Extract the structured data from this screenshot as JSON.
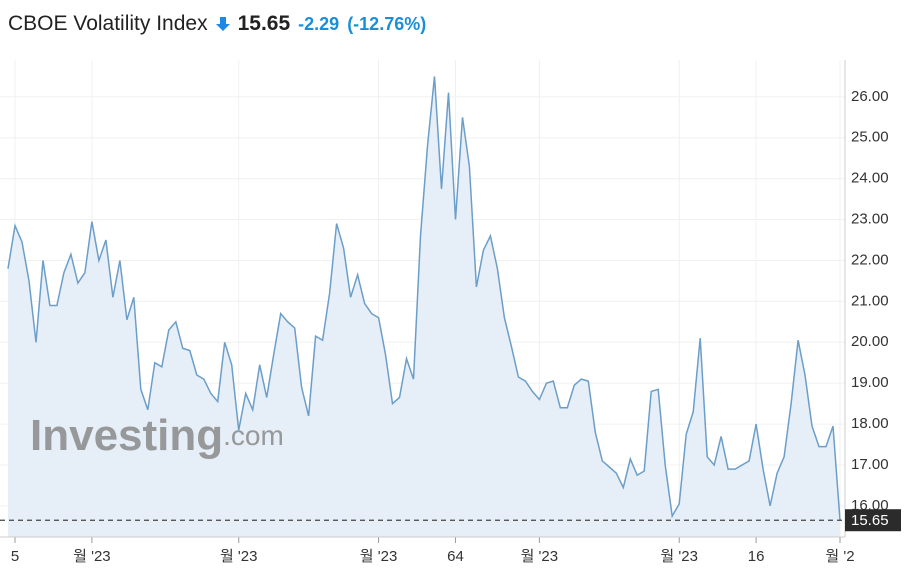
{
  "chart_data": {
    "type": "line",
    "title": "CBOE Volatility Index",
    "current": 15.65,
    "change": -2.29,
    "change_pct": "(-12.76%)",
    "watermark": [
      "Investing",
      ".com"
    ],
    "color": "#6b9ec9",
    "fill": "#e6eef7",
    "grid": true,
    "x": [
      0,
      1,
      2,
      3,
      4,
      5,
      6,
      7,
      8,
      9,
      10,
      11,
      12,
      13,
      14,
      15,
      16,
      17,
      18,
      19,
      20,
      21,
      22,
      23,
      24,
      25,
      26,
      27,
      28,
      29,
      30,
      31,
      32,
      33,
      34,
      35,
      36,
      37,
      38,
      39,
      40,
      41,
      42,
      43,
      44,
      45,
      46,
      47,
      48,
      49,
      50,
      51,
      52,
      53,
      54,
      55,
      56,
      57,
      58,
      59,
      60,
      61,
      62,
      63,
      64,
      65,
      66,
      67,
      68,
      69,
      70,
      71,
      72,
      73,
      74,
      75,
      76,
      77,
      78,
      79,
      80,
      81,
      82,
      83,
      84,
      85,
      86,
      87,
      88,
      89,
      90,
      91,
      92,
      93,
      94,
      95,
      96,
      97,
      98,
      99,
      100,
      101,
      102,
      103,
      104,
      105,
      106,
      107,
      108,
      109,
      110,
      111,
      112,
      113,
      114,
      115,
      116,
      117,
      118,
      119
    ],
    "values": [
      21.8,
      22.85,
      22.45,
      21.5,
      20.0,
      22.0,
      20.9,
      20.9,
      21.7,
      22.15,
      21.45,
      21.7,
      22.95,
      22.0,
      22.5,
      21.1,
      22.0,
      20.55,
      21.1,
      18.85,
      18.35,
      19.5,
      19.4,
      20.3,
      20.5,
      19.85,
      19.8,
      19.2,
      19.1,
      18.75,
      18.55,
      20.0,
      19.45,
      17.85,
      18.75,
      18.35,
      19.45,
      18.65,
      19.7,
      20.7,
      20.5,
      20.35,
      18.9,
      18.2,
      20.15,
      20.05,
      21.2,
      22.9,
      22.3,
      21.1,
      21.65,
      20.95,
      20.7,
      20.6,
      19.7,
      18.5,
      18.65,
      19.6,
      19.1,
      22.6,
      24.8,
      26.5,
      23.75,
      26.1,
      23.0,
      25.5,
      24.3,
      21.35,
      22.25,
      22.6,
      21.8,
      20.6,
      19.9,
      19.15,
      19.05,
      18.8,
      18.6,
      19.0,
      19.05,
      18.4,
      18.4,
      18.95,
      19.1,
      19.05,
      17.8,
      17.1,
      16.95,
      16.8,
      16.45,
      17.15,
      16.75,
      16.85,
      18.8,
      18.85,
      17.0,
      15.75,
      16.05,
      17.75,
      18.3,
      20.1,
      17.2,
      17.0,
      17.7,
      16.9,
      16.9,
      17.0,
      17.1,
      18.0,
      16.9,
      16.0,
      16.8,
      17.2,
      18.5,
      20.05,
      19.2,
      17.95,
      17.45,
      17.45,
      17.95,
      15.65
    ],
    "xlim": [
      0,
      119
    ],
    "xticks": [
      {
        "value": 1,
        "label": "5"
      },
      {
        "value": 12,
        "label": "월 '23"
      },
      {
        "value": 33,
        "label": "월 '23"
      },
      {
        "value": 53,
        "label": "월 '23"
      },
      64,
      {
        "value": 76,
        "label": "월 '23"
      },
      {
        "value": 96,
        "label": "월 '23"
      },
      {
        "value": 107,
        "label": "16"
      },
      {
        "value": 119,
        "label": "월 '2"
      }
    ],
    "ylim": [
      15.24,
      26.9
    ],
    "yticks": [
      {
        "value": 16,
        "label": "16.00"
      },
      {
        "value": 17,
        "label": "17.00"
      },
      {
        "value": 18,
        "label": "18.00"
      },
      {
        "value": 19,
        "label": "19.00"
      },
      {
        "value": 20,
        "label": "20.00"
      },
      {
        "value": 21,
        "label": "21.00"
      },
      {
        "value": 22,
        "label": "22.00"
      },
      {
        "value": 23,
        "label": "23.00"
      },
      {
        "value": 24,
        "label": "24.00"
      },
      {
        "value": 25,
        "label": "25.00"
      },
      {
        "value": 26,
        "label": "26.00"
      }
    ]
  }
}
